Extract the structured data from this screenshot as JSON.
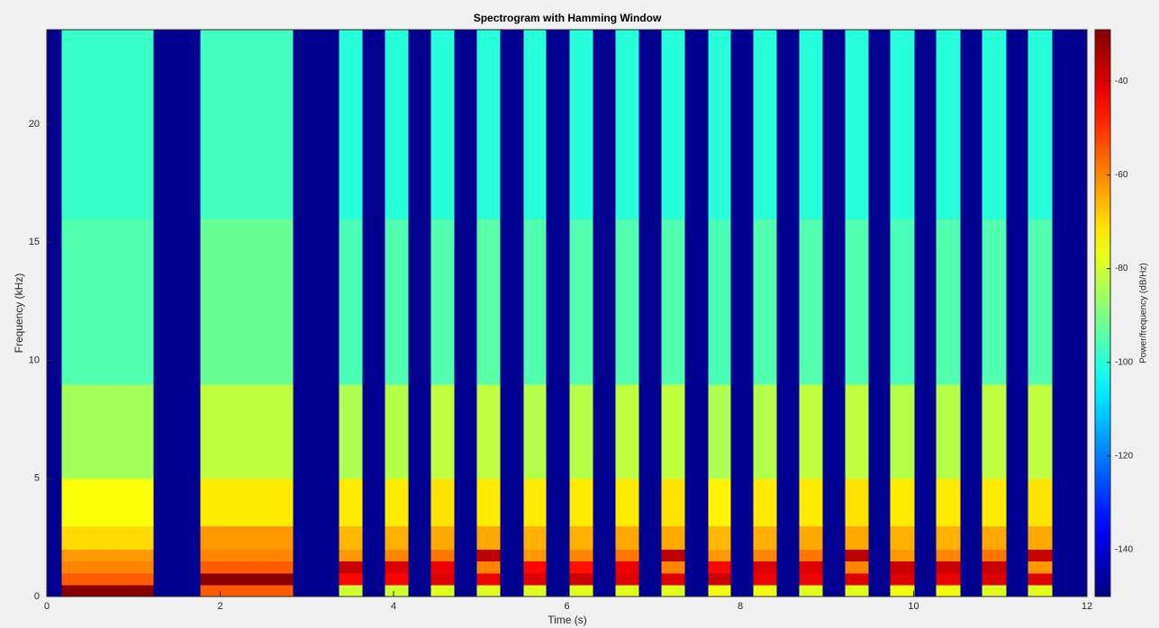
{
  "chart_data": {
    "type": "heatmap",
    "title": "Spectrogram with Hamming Window",
    "xlabel": "Time (s)",
    "ylabel": "Frequency (kHz)",
    "colorbar_label": "Power/frequency (dB/Hz)",
    "colormap": "jet",
    "xlim": [
      0,
      12
    ],
    "xticks": [
      0,
      2,
      4,
      6,
      8,
      10,
      12
    ],
    "ylim": [
      0,
      24
    ],
    "yticks": [
      0,
      5,
      10,
      15,
      20
    ],
    "clim": [
      -150,
      -29
    ],
    "cticks": [
      -140,
      -120,
      -100,
      -80,
      -60,
      -40
    ],
    "x_edges": [
      0,
      0.17,
      1.23,
      1.77,
      2.84,
      3.37,
      3.64,
      3.9,
      4.17,
      4.43,
      4.7,
      4.96,
      5.23,
      5.5,
      5.76,
      6.03,
      6.3,
      6.56,
      6.83,
      7.09,
      7.36,
      7.63,
      7.89,
      8.15,
      8.42,
      8.68,
      8.95,
      9.21,
      9.48,
      9.73,
      10.01,
      10.26,
      10.54,
      10.79,
      11.07,
      11.32,
      11.6,
      12
    ],
    "y_edges": [
      0,
      0.5,
      1,
      1.5,
      2,
      3,
      5,
      9,
      16,
      24
    ],
    "values": [
      [
        -148,
        -148,
        -148,
        -148,
        -148,
        -148,
        -148,
        -148,
        -148
      ],
      [
        -30,
        -55,
        -60,
        -62,
        -70,
        -75,
        -85,
        -95,
        -98
      ],
      [
        -148,
        -148,
        -148,
        -148,
        -148,
        -148,
        -148,
        -148,
        -148
      ],
      [
        -55,
        -30,
        -55,
        -60,
        -62,
        -72,
        -82,
        -92,
        -97
      ],
      [
        -148,
        -148,
        -148,
        -148,
        -148,
        -148,
        -148,
        -148,
        -148
      ],
      [
        -80,
        -45,
        -38,
        -62,
        -66,
        -72,
        -84,
        -96,
        -100
      ],
      [
        -148,
        -148,
        -148,
        -148,
        -148,
        -148,
        -148,
        -148,
        -148
      ],
      [
        -80,
        -44,
        -40,
        -60,
        -65,
        -72,
        -83,
        -95,
        -100
      ],
      [
        -148,
        -148,
        -148,
        -148,
        -148,
        -148,
        -148,
        -148,
        -148
      ],
      [
        -78,
        -40,
        -42,
        -58,
        -64,
        -71,
        -82,
        -95,
        -100
      ],
      [
        -148,
        -148,
        -148,
        -148,
        -148,
        -148,
        -148,
        -148,
        -148
      ],
      [
        -78,
        -42,
        -60,
        -36,
        -64,
        -72,
        -82,
        -94,
        -100
      ],
      [
        -148,
        -148,
        -148,
        -148,
        -148,
        -148,
        -148,
        -148,
        -148
      ],
      [
        -78,
        -40,
        -45,
        -62,
        -65,
        -72,
        -83,
        -95,
        -100
      ],
      [
        -148,
        -148,
        -148,
        -148,
        -148,
        -148,
        -148,
        -148,
        -148
      ],
      [
        -78,
        -38,
        -46,
        -60,
        -65,
        -72,
        -83,
        -95,
        -100
      ],
      [
        -148,
        -148,
        -148,
        -148,
        -148,
        -148,
        -148,
        -148,
        -148
      ],
      [
        -78,
        -40,
        -42,
        -58,
        -64,
        -72,
        -82,
        -95,
        -100
      ],
      [
        -148,
        -148,
        -148,
        -148,
        -148,
        -148,
        -148,
        -148,
        -148
      ],
      [
        -78,
        -40,
        -60,
        -36,
        -64,
        -71,
        -82,
        -95,
        -100
      ],
      [
        -148,
        -148,
        -148,
        -148,
        -148,
        -148,
        -148,
        -148,
        -148
      ],
      [
        -76,
        -38,
        -45,
        -62,
        -66,
        -73,
        -84,
        -96,
        -100
      ],
      [
        -148,
        -148,
        -148,
        -148,
        -148,
        -148,
        -148,
        -148,
        -148
      ],
      [
        -76,
        -42,
        -40,
        -60,
        -65,
        -72,
        -83,
        -95,
        -100
      ],
      [
        -148,
        -148,
        -148,
        -148,
        -148,
        -148,
        -148,
        -148,
        -148
      ],
      [
        -78,
        -42,
        -40,
        -58,
        -64,
        -72,
        -82,
        -95,
        -100
      ],
      [
        -148,
        -148,
        -148,
        -148,
        -148,
        -148,
        -148,
        -148,
        -148
      ],
      [
        -78,
        -40,
        -60,
        -36,
        -64,
        -71,
        -82,
        -95,
        -100
      ],
      [
        -148,
        -148,
        -148,
        -148,
        -148,
        -148,
        -148,
        -148,
        -148
      ],
      [
        -76,
        -40,
        -38,
        -62,
        -65,
        -72,
        -83,
        -96,
        -100
      ],
      [
        -148,
        -148,
        -148,
        -148,
        -148,
        -148,
        -148,
        -148,
        -148
      ],
      [
        -76,
        -42,
        -38,
        -60,
        -65,
        -72,
        -83,
        -95,
        -100
      ],
      [
        -148,
        -148,
        -148,
        -148,
        -148,
        -148,
        -148,
        -148,
        -148
      ],
      [
        -78,
        -40,
        -38,
        -58,
        -64,
        -72,
        -82,
        -95,
        -100
      ],
      [
        -148,
        -148,
        -148,
        -148,
        -148,
        -148,
        -148,
        -148,
        -148
      ],
      [
        -78,
        -40,
        -62,
        -38,
        -64,
        -71,
        -82,
        -95,
        -100
      ],
      [
        -148,
        -148,
        -148,
        -148,
        -148,
        -148,
        -148,
        -148,
        -148
      ]
    ],
    "grid": false
  }
}
